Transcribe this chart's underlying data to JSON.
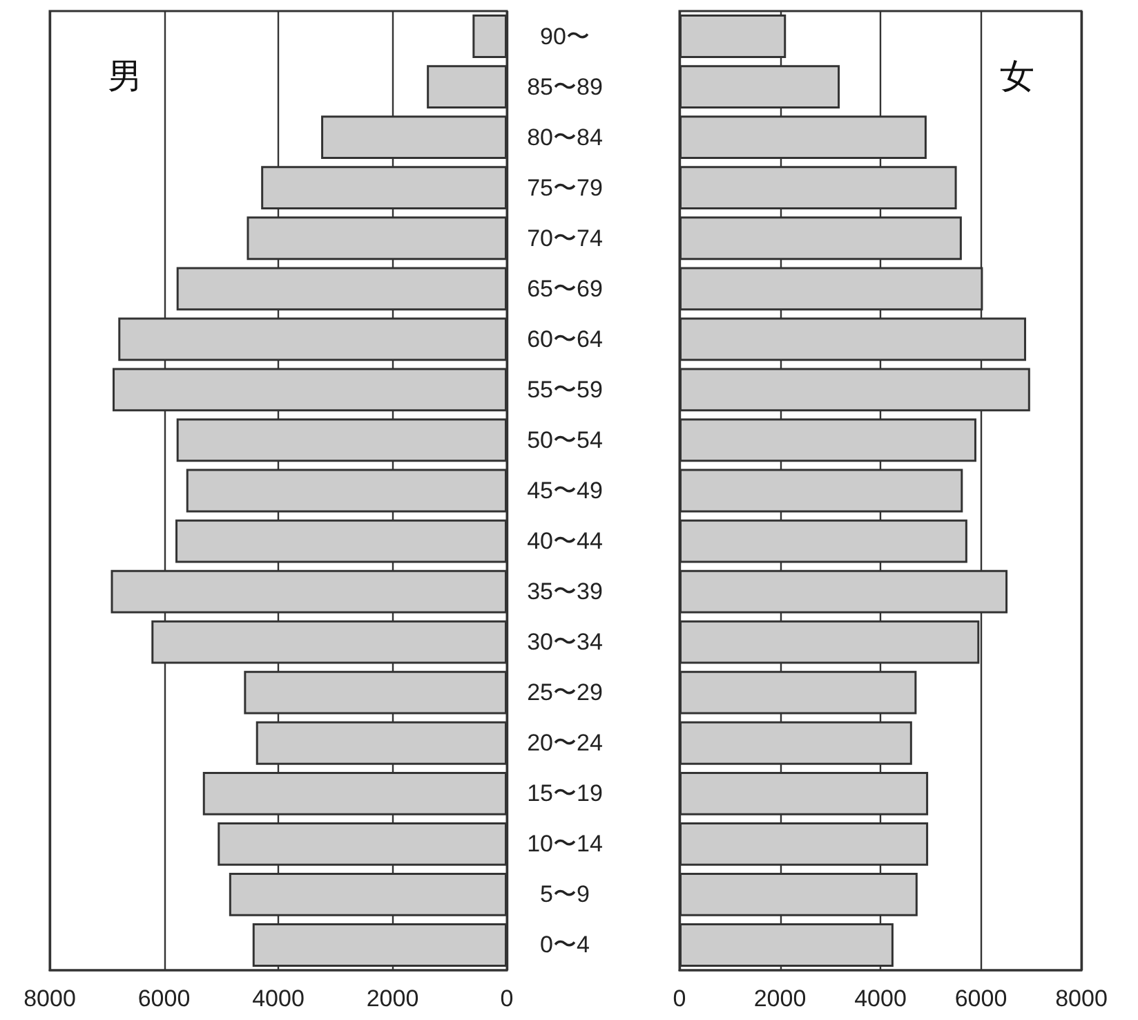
{
  "chart_data": [
    {
      "type": "bar",
      "orientation": "horizontal",
      "categories": [
        "90〜",
        "85〜89",
        "80〜84",
        "75〜79",
        "70〜74",
        "65〜69",
        "60〜64",
        "55〜59",
        "50〜54",
        "45〜49",
        "40〜44",
        "35〜39",
        "30〜34",
        "25〜29",
        "20〜24",
        "15〜19",
        "10〜14",
        "5〜9",
        "0〜4"
      ],
      "series": [
        {
          "name": "男",
          "color": "#cccccc",
          "values": [
            600,
            1400,
            3250,
            4300,
            4550,
            5780,
            6800,
            6900,
            5780,
            5610,
            5800,
            6930,
            6220,
            4600,
            4390,
            5320,
            5060,
            4860,
            4450
          ]
        }
      ],
      "xlim": [
        8000,
        0
      ],
      "xticks": [
        8000,
        6000,
        4000,
        2000,
        0
      ],
      "grid": "x",
      "legend": false
    },
    {
      "type": "bar",
      "orientation": "horizontal",
      "categories": [
        null,
        null,
        null,
        null,
        null,
        null,
        null,
        null,
        null,
        null,
        null,
        null,
        null,
        null,
        null,
        null,
        null,
        null,
        null
      ],
      "series": [
        {
          "name": "女",
          "color": "#cccccc",
          "values": [
            2120,
            3190,
            4920,
            5520,
            5620,
            6040,
            6900,
            6980,
            5910,
            5640,
            5730,
            6530,
            5970,
            4720,
            4630,
            4950,
            4950,
            4740,
            4260
          ]
        }
      ],
      "xlim": [
        0,
        8000
      ],
      "xticks": [
        0,
        2000,
        4000,
        6000,
        8000
      ],
      "grid": "x",
      "legend": false
    }
  ]
}
